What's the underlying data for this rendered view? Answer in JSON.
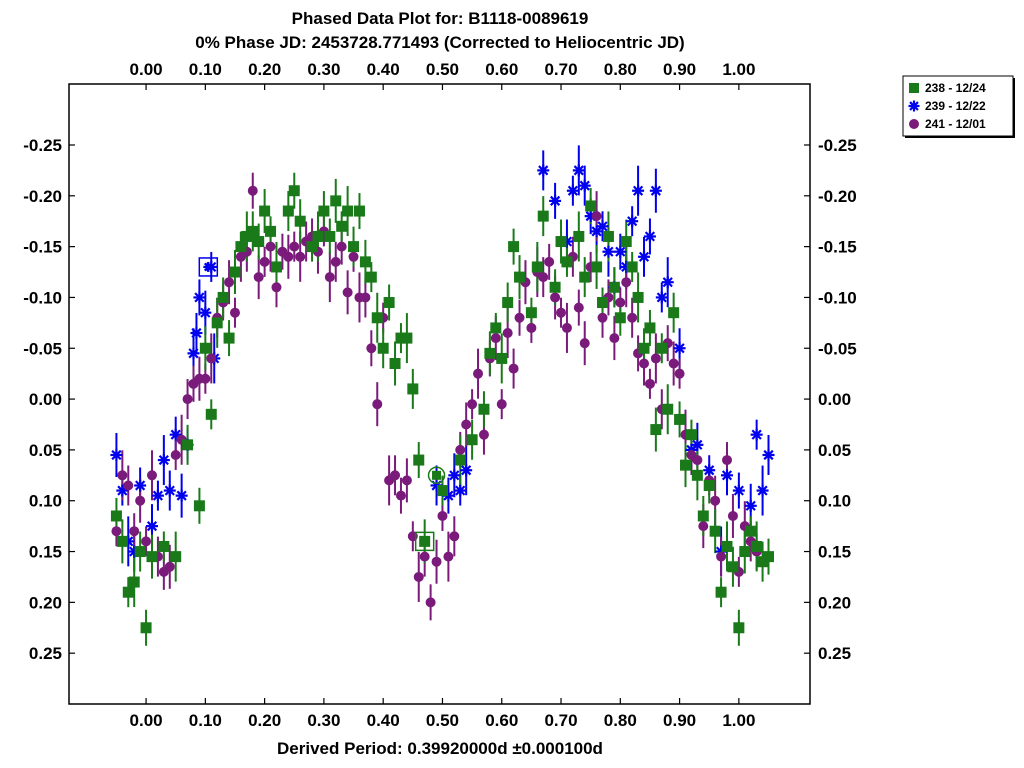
{
  "chart_data": {
    "type": "scatter",
    "title": "Phased Data Plot for: B1118-0089619",
    "subtitle": "0% Phase JD:  2453728.771493   (Corrected to Heliocentric JD)",
    "xlabel": "Derived Period: 0.39920000d   ±0.000100d",
    "ylabel": "",
    "xlim": [
      -0.13,
      1.12
    ],
    "ylim": [
      0.3,
      -0.31
    ],
    "y_inverted": true,
    "grid": false,
    "legend_position": "top-right outside plot",
    "x_ticks": [
      "0.00",
      "0.10",
      "0.20",
      "0.30",
      "0.40",
      "0.50",
      "0.60",
      "0.70",
      "0.80",
      "0.90",
      "1.00"
    ],
    "y_ticks": [
      "-0.25",
      "-0.20",
      "-0.15",
      "-0.10",
      "-0.05",
      "0.00",
      "0.05",
      "0.10",
      "0.15",
      "0.20",
      "0.25"
    ],
    "series": [
      {
        "name": "238 - 12/24",
        "marker": "square",
        "color": "#1a7a1a",
        "points": [
          [
            -0.05,
            0.115
          ],
          [
            -0.04,
            0.14
          ],
          [
            -0.03,
            0.19
          ],
          [
            -0.02,
            0.18
          ],
          [
            -0.01,
            0.15
          ],
          [
            0.0,
            0.225
          ],
          [
            0.01,
            0.155
          ],
          [
            0.03,
            0.145
          ],
          [
            0.05,
            0.155
          ],
          [
            0.07,
            0.045
          ],
          [
            0.09,
            0.105
          ],
          [
            0.1,
            -0.05
          ],
          [
            0.11,
            0.015
          ],
          [
            0.12,
            -0.075
          ],
          [
            0.13,
            -0.1
          ],
          [
            0.14,
            -0.06
          ],
          [
            0.15,
            -0.125
          ],
          [
            0.16,
            -0.15
          ],
          [
            0.17,
            -0.16
          ],
          [
            0.18,
            -0.165
          ],
          [
            0.19,
            -0.155
          ],
          [
            0.2,
            -0.185
          ],
          [
            0.21,
            -0.165
          ],
          [
            0.22,
            -0.13
          ],
          [
            0.24,
            -0.185
          ],
          [
            0.25,
            -0.205
          ],
          [
            0.26,
            -0.175
          ],
          [
            0.28,
            -0.15
          ],
          [
            0.29,
            -0.16
          ],
          [
            0.3,
            -0.185
          ],
          [
            0.31,
            -0.16
          ],
          [
            0.32,
            -0.195
          ],
          [
            0.33,
            -0.17
          ],
          [
            0.34,
            -0.185
          ],
          [
            0.35,
            -0.15
          ],
          [
            0.36,
            -0.185
          ],
          [
            0.37,
            -0.135
          ],
          [
            0.38,
            -0.12
          ],
          [
            0.39,
            -0.08
          ],
          [
            0.4,
            -0.05
          ],
          [
            0.41,
            -0.095
          ],
          [
            0.42,
            -0.035
          ],
          [
            0.43,
            -0.06
          ],
          [
            0.44,
            -0.06
          ],
          [
            0.45,
            -0.01
          ],
          [
            0.46,
            0.06
          ],
          [
            0.47,
            0.14
          ],
          [
            0.5,
            0.09
          ],
          [
            0.53,
            0.06
          ],
          [
            0.55,
            0.04
          ],
          [
            0.57,
            0.01
          ],
          [
            0.58,
            -0.045
          ],
          [
            0.59,
            -0.07
          ],
          [
            0.6,
            -0.04
          ],
          [
            0.61,
            -0.095
          ],
          [
            0.62,
            -0.15
          ],
          [
            0.63,
            -0.12
          ],
          [
            0.65,
            -0.085
          ],
          [
            0.66,
            -0.13
          ],
          [
            0.67,
            -0.18
          ],
          [
            0.69,
            -0.11
          ],
          [
            0.7,
            -0.155
          ],
          [
            0.71,
            -0.135
          ],
          [
            0.73,
            -0.16
          ],
          [
            0.74,
            -0.12
          ],
          [
            0.75,
            -0.19
          ],
          [
            0.76,
            -0.13
          ],
          [
            0.77,
            -0.095
          ],
          [
            0.78,
            -0.16
          ],
          [
            0.79,
            -0.11
          ],
          [
            0.8,
            -0.08
          ],
          [
            0.81,
            -0.155
          ],
          [
            0.82,
            -0.13
          ],
          [
            0.83,
            -0.1
          ],
          [
            0.84,
            -0.05
          ],
          [
            0.85,
            -0.07
          ],
          [
            0.86,
            0.03
          ],
          [
            0.87,
            -0.05
          ],
          [
            0.88,
            0.01
          ],
          [
            0.89,
            -0.085
          ],
          [
            0.9,
            0.02
          ],
          [
            0.91,
            0.065
          ],
          [
            0.92,
            0.035
          ],
          [
            0.93,
            0.075
          ],
          [
            0.94,
            0.115
          ],
          [
            0.95,
            0.085
          ],
          [
            0.96,
            0.13
          ],
          [
            0.97,
            0.19
          ],
          [
            0.98,
            0.145
          ],
          [
            0.99,
            0.165
          ],
          [
            1.0,
            0.225
          ],
          [
            1.01,
            0.15
          ],
          [
            1.02,
            0.13
          ],
          [
            1.03,
            0.145
          ],
          [
            1.04,
            0.16
          ],
          [
            1.05,
            0.155
          ]
        ]
      },
      {
        "name": "239 - 12/22",
        "marker": "asterisk",
        "color": "#0000ee",
        "points": [
          [
            -0.05,
            0.055
          ],
          [
            -0.04,
            0.09
          ],
          [
            -0.03,
            0.14
          ],
          [
            -0.02,
            0.15
          ],
          [
            -0.01,
            0.085
          ],
          [
            0.01,
            0.125
          ],
          [
            0.02,
            0.095
          ],
          [
            0.03,
            0.06
          ],
          [
            0.04,
            0.09
          ],
          [
            0.05,
            0.035
          ],
          [
            0.06,
            0.095
          ],
          [
            0.07,
            0.045
          ],
          [
            0.08,
            -0.045
          ],
          [
            0.085,
            -0.065
          ],
          [
            0.09,
            -0.1
          ],
          [
            0.1,
            -0.085
          ],
          [
            0.11,
            -0.13
          ],
          [
            0.115,
            -0.04
          ],
          [
            0.49,
            0.085
          ],
          [
            0.51,
            0.095
          ],
          [
            0.52,
            0.075
          ],
          [
            0.53,
            0.09
          ],
          [
            0.54,
            0.07
          ],
          [
            0.67,
            -0.225
          ],
          [
            0.69,
            -0.195
          ],
          [
            0.71,
            -0.155
          ],
          [
            0.72,
            -0.205
          ],
          [
            0.73,
            -0.225
          ],
          [
            0.74,
            -0.21
          ],
          [
            0.75,
            -0.18
          ],
          [
            0.76,
            -0.165
          ],
          [
            0.77,
            -0.17
          ],
          [
            0.78,
            -0.145
          ],
          [
            0.79,
            -0.11
          ],
          [
            0.8,
            -0.145
          ],
          [
            0.81,
            -0.13
          ],
          [
            0.82,
            -0.175
          ],
          [
            0.83,
            -0.205
          ],
          [
            0.84,
            -0.14
          ],
          [
            0.85,
            -0.16
          ],
          [
            0.86,
            -0.205
          ],
          [
            0.87,
            -0.1
          ],
          [
            0.88,
            -0.115
          ],
          [
            0.9,
            -0.05
          ],
          [
            0.92,
            0.05
          ],
          [
            0.93,
            0.045
          ],
          [
            0.95,
            0.07
          ],
          [
            0.97,
            0.15
          ],
          [
            0.98,
            0.075
          ],
          [
            1.0,
            0.09
          ],
          [
            1.02,
            0.105
          ],
          [
            1.03,
            0.035
          ],
          [
            1.04,
            0.09
          ],
          [
            1.05,
            0.055
          ]
        ]
      },
      {
        "name": "241 - 12/01",
        "marker": "circle",
        "color": "#7a1a7a",
        "points": [
          [
            -0.05,
            0.13
          ],
          [
            -0.04,
            0.075
          ],
          [
            -0.03,
            0.085
          ],
          [
            -0.02,
            0.13
          ],
          [
            -0.01,
            0.1
          ],
          [
            0.0,
            0.14
          ],
          [
            0.01,
            0.075
          ],
          [
            0.02,
            0.155
          ],
          [
            0.03,
            0.17
          ],
          [
            0.04,
            0.165
          ],
          [
            0.05,
            0.055
          ],
          [
            0.06,
            0.04
          ],
          [
            0.07,
            0.0
          ],
          [
            0.08,
            -0.015
          ],
          [
            0.09,
            -0.02
          ],
          [
            0.1,
            -0.02
          ],
          [
            0.11,
            -0.04
          ],
          [
            0.12,
            -0.08
          ],
          [
            0.13,
            -0.095
          ],
          [
            0.14,
            -0.115
          ],
          [
            0.15,
            -0.085
          ],
          [
            0.16,
            -0.14
          ],
          [
            0.17,
            -0.145
          ],
          [
            0.18,
            -0.205
          ],
          [
            0.19,
            -0.12
          ],
          [
            0.2,
            -0.135
          ],
          [
            0.21,
            -0.15
          ],
          [
            0.22,
            -0.11
          ],
          [
            0.23,
            -0.145
          ],
          [
            0.24,
            -0.14
          ],
          [
            0.25,
            -0.15
          ],
          [
            0.26,
            -0.14
          ],
          [
            0.27,
            -0.155
          ],
          [
            0.28,
            -0.16
          ],
          [
            0.29,
            -0.145
          ],
          [
            0.3,
            -0.165
          ],
          [
            0.31,
            -0.12
          ],
          [
            0.32,
            -0.135
          ],
          [
            0.33,
            -0.15
          ],
          [
            0.34,
            -0.105
          ],
          [
            0.35,
            -0.14
          ],
          [
            0.36,
            -0.1
          ],
          [
            0.37,
            -0.1
          ],
          [
            0.38,
            -0.05
          ],
          [
            0.39,
            0.005
          ],
          [
            0.4,
            -0.08
          ],
          [
            0.41,
            0.08
          ],
          [
            0.42,
            0.075
          ],
          [
            0.43,
            0.095
          ],
          [
            0.44,
            0.08
          ],
          [
            0.45,
            0.135
          ],
          [
            0.46,
            0.175
          ],
          [
            0.47,
            0.155
          ],
          [
            0.48,
            0.2
          ],
          [
            0.49,
            0.16
          ],
          [
            0.5,
            0.115
          ],
          [
            0.51,
            0.155
          ],
          [
            0.52,
            0.135
          ],
          [
            0.53,
            0.05
          ],
          [
            0.54,
            0.025
          ],
          [
            0.55,
            0.005
          ],
          [
            0.56,
            -0.025
          ],
          [
            0.57,
            0.035
          ],
          [
            0.58,
            -0.04
          ],
          [
            0.59,
            -0.06
          ],
          [
            0.6,
            0.005
          ],
          [
            0.61,
            -0.065
          ],
          [
            0.62,
            -0.03
          ],
          [
            0.63,
            -0.08
          ],
          [
            0.64,
            -0.115
          ],
          [
            0.65,
            -0.07
          ],
          [
            0.66,
            -0.125
          ],
          [
            0.67,
            -0.12
          ],
          [
            0.68,
            -0.135
          ],
          [
            0.69,
            -0.1
          ],
          [
            0.7,
            -0.085
          ],
          [
            0.71,
            -0.07
          ],
          [
            0.72,
            -0.14
          ],
          [
            0.73,
            -0.09
          ],
          [
            0.74,
            -0.055
          ],
          [
            0.75,
            -0.13
          ],
          [
            0.76,
            -0.18
          ],
          [
            0.77,
            -0.08
          ],
          [
            0.78,
            -0.1
          ],
          [
            0.79,
            -0.06
          ],
          [
            0.8,
            -0.095
          ],
          [
            0.81,
            -0.115
          ],
          [
            0.82,
            -0.08
          ],
          [
            0.83,
            -0.045
          ],
          [
            0.84,
            -0.035
          ],
          [
            0.85,
            -0.015
          ],
          [
            0.86,
            -0.04
          ],
          [
            0.87,
            0.01
          ],
          [
            0.88,
            -0.055
          ],
          [
            0.89,
            -0.035
          ],
          [
            0.9,
            -0.025
          ],
          [
            0.91,
            0.035
          ],
          [
            0.92,
            0.055
          ],
          [
            0.93,
            0.06
          ],
          [
            0.94,
            0.125
          ],
          [
            0.95,
            0.08
          ],
          [
            0.96,
            0.1
          ],
          [
            0.97,
            0.155
          ],
          [
            0.98,
            0.06
          ],
          [
            0.99,
            0.115
          ],
          [
            1.0,
            0.17
          ],
          [
            1.01,
            0.125
          ],
          [
            1.02,
            0.14
          ],
          [
            1.03,
            0.15
          ]
        ]
      }
    ],
    "large_markers": [
      {
        "series": "239 - 12/22",
        "marker": "square",
        "x": 0.105,
        "y": -0.13
      },
      {
        "series": "238 - 12/24",
        "marker": "square",
        "x": 0.47,
        "y": 0.14
      },
      {
        "series": "238 - 12/24",
        "marker": "circle",
        "x": 0.49,
        "y": 0.075
      }
    ]
  }
}
